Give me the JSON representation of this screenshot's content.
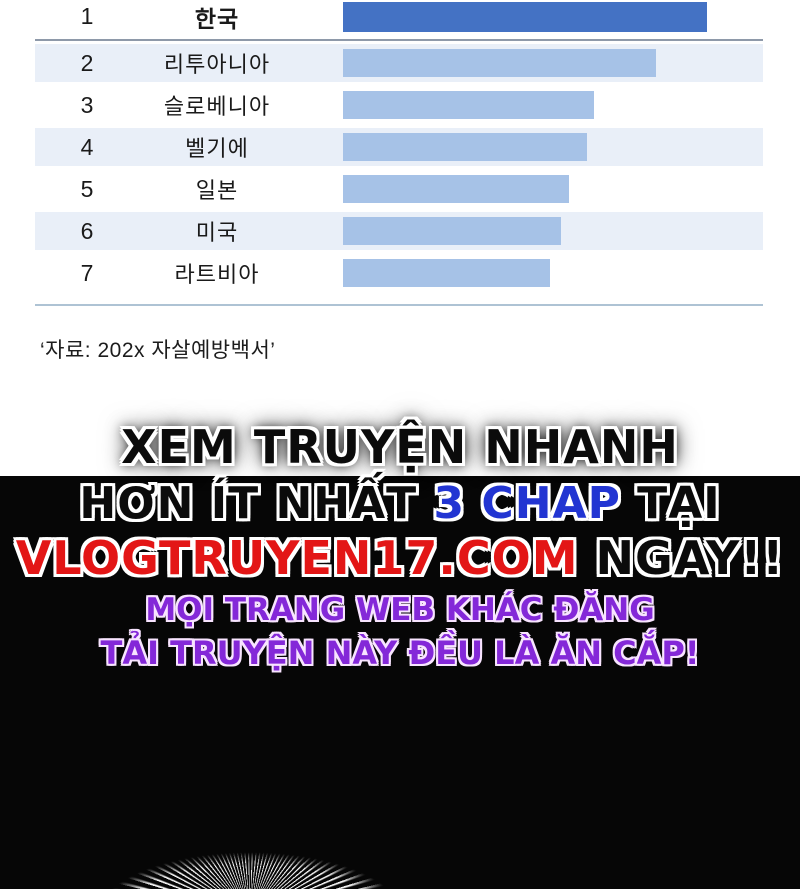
{
  "chart": {
    "rows": [
      {
        "rank": "1",
        "country": "한국",
        "value_pct": 100
      },
      {
        "rank": "2",
        "country": "리투아니아",
        "value_pct": 86
      },
      {
        "rank": "3",
        "country": "슬로베니아",
        "value_pct": 69
      },
      {
        "rank": "4",
        "country": "벨기에",
        "value_pct": 67
      },
      {
        "rank": "5",
        "country": "일본",
        "value_pct": 62
      },
      {
        "rank": "6",
        "country": "미국",
        "value_pct": 60
      },
      {
        "rank": "7",
        "country": "라트비아",
        "value_pct": 57
      }
    ],
    "source_note": "‘자료: 202x 자살예방백서’",
    "colors": {
      "bar_highlight": "#4472c4",
      "bar_normal": "#a6c2e7",
      "row_shade": "#e9eff8"
    }
  },
  "promo": {
    "line1": "XEM TRUYỆN NHANH",
    "line2": {
      "prefix": "HƠN ÍT NHẤT ",
      "highlight": "3 CHAP",
      "suffix": " TẠI"
    },
    "line3": {
      "site": "VLOGTRUYEN17.COM",
      "suffix": " NGAY!!"
    },
    "line4": "MỌI TRANG WEB KHÁC ĐĂNG",
    "line5": "TẢI TRUYỆN NÀY ĐỀU LÀ ĂN CẮP!",
    "colors": {
      "chap_blue": "#2235d2",
      "site_red": "#e31616",
      "warning_purple": "#8428d8"
    }
  },
  "chart_data": {
    "type": "bar",
    "orientation": "horizontal",
    "title": "",
    "categories": [
      "한국",
      "리투아니아",
      "슬로베니아",
      "벨기에",
      "일본",
      "미국",
      "라트비아"
    ],
    "ranks": [
      1,
      2,
      3,
      4,
      5,
      6,
      7
    ],
    "values": [
      100,
      86,
      69,
      67,
      62,
      60,
      57
    ],
    "values_unit": "percent_of_longest_bar",
    "xlim": [
      0,
      100
    ],
    "grid": false,
    "legend": false,
    "source": "‘자료: 202x 자살예방백서’"
  }
}
